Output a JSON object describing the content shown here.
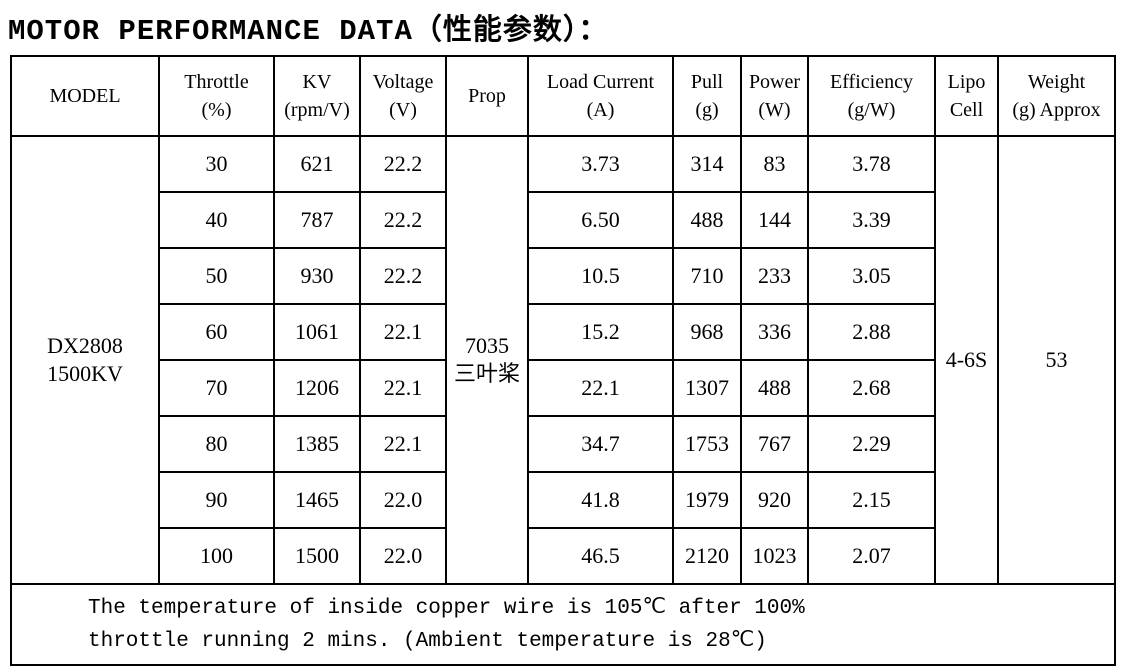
{
  "title": "MOTOR PERFORMANCE DATA（性能参数）：",
  "table": {
    "header": [
      [
        "MODEL"
      ],
      [
        "Throttle",
        "(%)"
      ],
      [
        "KV",
        "(rpm/V)"
      ],
      [
        "Voltage",
        "(V)"
      ],
      [
        "Prop"
      ],
      [
        "Load Current",
        "(A)"
      ],
      [
        "Pull",
        "(g)"
      ],
      [
        "Power",
        "(W)"
      ],
      [
        "Efficiency",
        "(g/W)"
      ],
      [
        "Lipo",
        "Cell"
      ],
      [
        "Weight",
        "(g) Approx"
      ]
    ],
    "model": [
      "DX2808",
      "1500KV"
    ],
    "prop": [
      "7035",
      "三叶桨"
    ],
    "lipo_cell": "4-6S",
    "weight": "53",
    "rows": [
      [
        "30",
        "621",
        "22.2",
        "3.73",
        "314",
        "83",
        "3.78"
      ],
      [
        "40",
        "787",
        "22.2",
        "6.50",
        "488",
        "144",
        "3.39"
      ],
      [
        "50",
        "930",
        "22.2",
        "10.5",
        "710",
        "233",
        "3.05"
      ],
      [
        "60",
        "1061",
        "22.1",
        "15.2",
        "968",
        "336",
        "2.88"
      ],
      [
        "70",
        "1206",
        "22.1",
        "22.1",
        "1307",
        "488",
        "2.68"
      ],
      [
        "80",
        "1385",
        "22.1",
        "34.7",
        "1753",
        "767",
        "2.29"
      ],
      [
        "90",
        "1465",
        "22.0",
        "41.8",
        "1979",
        "920",
        "2.15"
      ],
      [
        "100",
        "1500",
        "22.0",
        "46.5",
        "2120",
        "1023",
        "2.07"
      ]
    ]
  },
  "note": [
    "The temperature of inside copper wire is 105℃ after 100%",
    "throttle running 2 mins. (Ambient temperature is 28℃)"
  ]
}
